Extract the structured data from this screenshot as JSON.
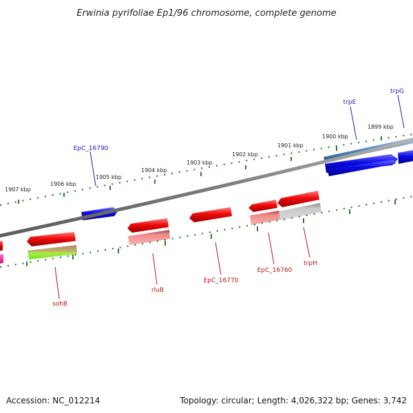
{
  "title": "Erwinia pyrifoliae Ep1/96 chromosome, complete genome",
  "footer": {
    "accession": "Accession: NC_012214",
    "summary": "Topology: circular; Length: 4,026,322 bp; Genes: 3,742"
  },
  "kbp_ticks": [
    {
      "label": "1907 kbp"
    },
    {
      "label": "1906 kbp"
    },
    {
      "label": "1905 kbp"
    },
    {
      "label": "1904 kbp"
    },
    {
      "label": "1903 kbp"
    },
    {
      "label": "1902 kbp"
    },
    {
      "label": "1901 kbp"
    },
    {
      "label": "1900 kbp"
    },
    {
      "label": "1899 kbp"
    }
  ],
  "gene_labels": {
    "top": [
      {
        "name": "EpC_16790",
        "color": "#1a1aa8"
      },
      {
        "name": "trpE",
        "color": "#1a1aa8"
      },
      {
        "name": "trpG",
        "color": "#1a1aa8"
      }
    ],
    "bottom": [
      {
        "name": "sohB",
        "color": "#b01818"
      },
      {
        "name": "rluB",
        "color": "#b01818"
      },
      {
        "name": "EpC_16770",
        "color": "#b01818"
      },
      {
        "name": "EpC_16760",
        "color": "#b01818"
      },
      {
        "name": "trpH",
        "color": "#b01818"
      }
    ]
  },
  "colors": {
    "forward_strand": "#0a0ae0",
    "reverse_strand": "#e00a0a",
    "backbone": "#808080",
    "ruler": "#2a7a2a"
  }
}
